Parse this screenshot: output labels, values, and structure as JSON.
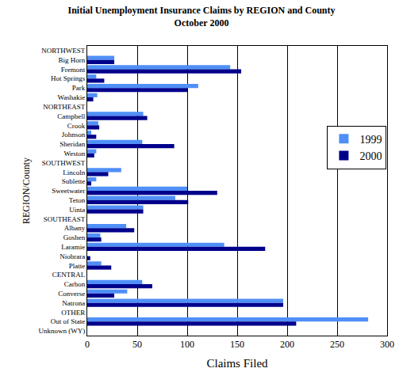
{
  "chart_data": {
    "type": "bar",
    "orientation": "horizontal",
    "title": "Initial Unemployment Insurance Claims by REGION and County\nOctober 2000",
    "x_label": "Claims Filed",
    "y_label": "REGION/County",
    "categories": [
      "NORTHWEST",
      "Big Horn",
      "Fremont",
      "Hot Springs",
      "Park",
      "Washakie",
      "NORTHEAST",
      "Campbell",
      "Crook",
      "Johnson",
      "Sheridan",
      "Weston",
      "SOUTHWEST",
      "Lincoln",
      "Sublette",
      "Sweetwater",
      "Teton",
      "Uinta",
      "SOUTHEAST",
      "Albany",
      "Goshen",
      "Laramie",
      "Niobrara",
      "Platte",
      "CENTRAL",
      "Carbon",
      "Converse",
      "Natrona",
      "OTHER",
      "Out of State",
      "Unknown (WY)"
    ],
    "series": [
      {
        "name": "1999",
        "color": "#4f8ff7",
        "values": [
          null,
          27,
          143,
          9,
          111,
          10,
          null,
          56,
          11,
          4,
          55,
          9,
          null,
          34,
          9,
          100,
          88,
          56,
          null,
          39,
          13,
          137,
          0,
          14,
          null,
          55,
          40,
          196,
          null,
          281,
          0
        ]
      },
      {
        "name": "2000",
        "color": "#00008b",
        "values": [
          null,
          27,
          154,
          17,
          100,
          6,
          null,
          60,
          12,
          9,
          87,
          7,
          null,
          21,
          4,
          130,
          101,
          56,
          null,
          47,
          14,
          178,
          3,
          24,
          null,
          65,
          27,
          196,
          null,
          209,
          0
        ]
      }
    ],
    "xlim": [
      0,
      300
    ],
    "xticks": [
      0,
      50,
      100,
      150,
      200,
      250,
      300
    ],
    "grid": true,
    "legend": "right"
  }
}
